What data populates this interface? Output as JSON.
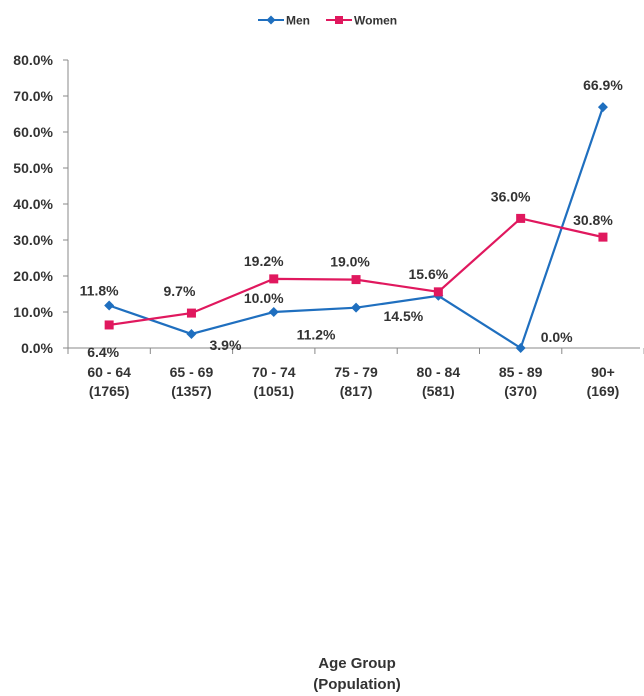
{
  "chart_data": {
    "type": "line",
    "categories": [
      [
        "60 - 64",
        "(1765)"
      ],
      [
        "65 - 69",
        "(1357)"
      ],
      [
        "70 - 74",
        "(1051)"
      ],
      [
        "75 - 79",
        "(817)"
      ],
      [
        "80 - 84",
        "(581)"
      ],
      [
        "85 - 89",
        "(370)"
      ],
      [
        "90+",
        "(169)"
      ]
    ],
    "series": [
      {
        "name": "Men",
        "color": "#1f6fbf",
        "marker": "diamond",
        "values": [
          11.8,
          3.9,
          10.0,
          11.2,
          14.5,
          0.0,
          66.9
        ],
        "labels": [
          "11.8%",
          "3.9%",
          "10.0%",
          "11.2%",
          "14.5%",
          "0.0%",
          "66.9%"
        ]
      },
      {
        "name": "Women",
        "color": "#e0185e",
        "marker": "square",
        "values": [
          6.4,
          9.7,
          19.2,
          19.0,
          15.6,
          36.0,
          30.8
        ],
        "labels": [
          "6.4%",
          "9.7%",
          "19.2%",
          "19.0%",
          "15.6%",
          "36.0%",
          "30.8%"
        ]
      }
    ],
    "yticks": [
      "0.0%",
      "10.0%",
      "20.0%",
      "30.0%",
      "40.0%",
      "50.0%",
      "60.0%",
      "70.0%",
      "80.0%"
    ],
    "ylim": [
      0,
      80
    ],
    "xlabel": [
      "Age Group",
      "(Population)"
    ],
    "ylabel": "",
    "grid": false,
    "legend_position": "top"
  }
}
